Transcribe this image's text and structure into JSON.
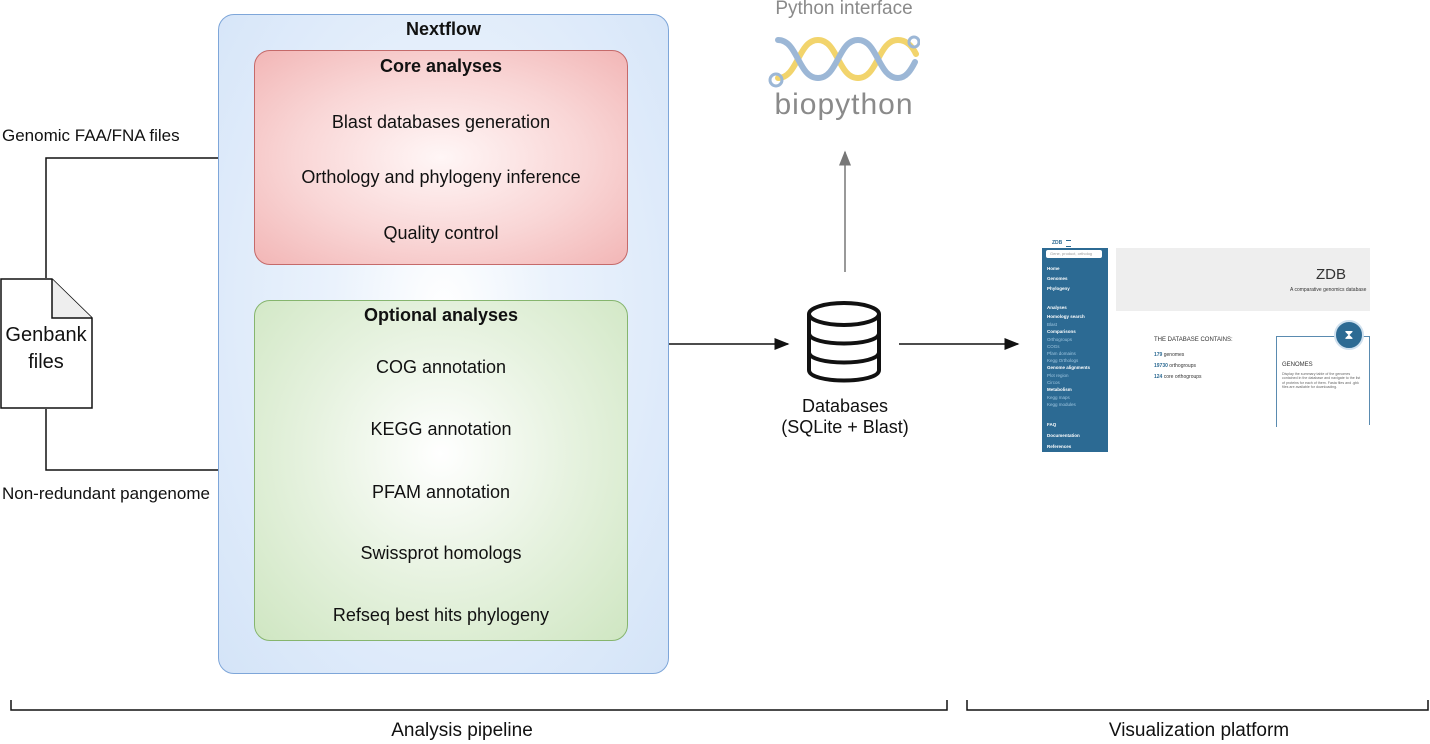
{
  "nextflow": {
    "title": "Nextflow",
    "core": {
      "title": "Core analyses",
      "items": [
        "Blast databases generation",
        "Orthology and phylogeny inference",
        "Quality control"
      ]
    },
    "optional": {
      "title": "Optional analyses",
      "items": [
        "COG annotation",
        "KEGG annotation",
        "PFAM annotation",
        "Swissprot homologs",
        "Refseq best hits phylogeny"
      ]
    }
  },
  "inputs": {
    "genbank": [
      "Genbank",
      "files"
    ],
    "top_label": "Genomic FAA/FNA files",
    "bottom_label": "Non-redundant pangenome"
  },
  "database": {
    "line1": "Databases",
    "line2": "(SQLite + Blast)"
  },
  "python": {
    "title": "Python interface",
    "logo_text": "biopython"
  },
  "platform": {
    "brand": "ZDB",
    "search_placeholder": "Gene, product, ortholog",
    "heading": "ZDB",
    "subheading": "A comparative genomics database",
    "nav": [
      "Home",
      "Genomes",
      "Phylogeny",
      "Analyses",
      "Homology search",
      "Blast",
      "Comparisons",
      "Orthogroups",
      "COGs",
      "Pfam domains",
      "Kegg Orthologs",
      "Genome alignments",
      "Plot region",
      "Circos",
      "Metabolism",
      "Kegg maps",
      "Kegg modules",
      "FAQ",
      "Documentation",
      "References"
    ],
    "contains_label": "THE DATABASE CONTAINS:",
    "stats": [
      {
        "value": "179",
        "label": "genomes"
      },
      {
        "value": "19730",
        "label": "orthogroups"
      },
      {
        "value": "124",
        "label": "core orthogroups"
      }
    ],
    "card_title": "GENOMES",
    "card_text": "Display the summary table of the genomes contained in the database and navigate to the list of proteins for each of them. Fasta files and .gbk files are available for downloading."
  },
  "footer": {
    "left": "Analysis pipeline",
    "right": "Visualization platform"
  },
  "colors": {
    "core_border": "#c56a6a",
    "optional_border": "#86b56e",
    "nextflow_border": "#7ea6d9",
    "sidebar": "#2c6a93"
  }
}
